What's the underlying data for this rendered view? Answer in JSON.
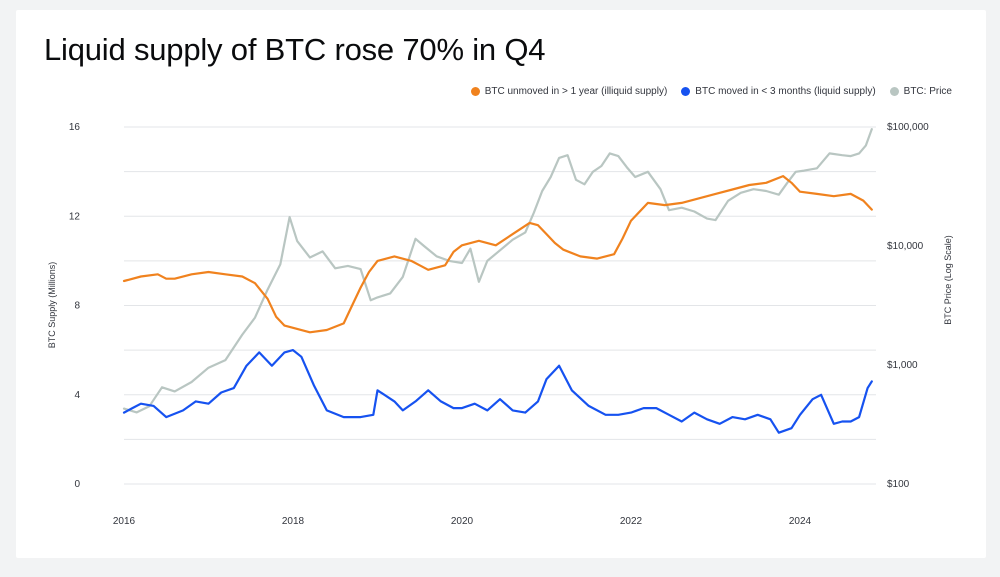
{
  "title": "Liquid supply of BTC rose 70% in Q4",
  "legend": [
    {
      "label": "BTC unmoved in > 1 year (illiquid supply)",
      "color": "#f0821e"
    },
    {
      "label": "BTC moved in < 3 months (liquid supply)",
      "color": "#1652f0"
    },
    {
      "label": "BTC: Price",
      "color": "#b9c6c2"
    }
  ],
  "chart_data": {
    "type": "line",
    "xlabel": "",
    "ylabel": "BTC Supply (Millions)",
    "y2label": "BTC Price (Log Scale)",
    "xlim": [
      2016.0,
      2024.9
    ],
    "ylim": [
      0,
      16
    ],
    "y2lim": [
      100,
      100000
    ],
    "y2scale": "log",
    "xticks": [
      2016,
      2018,
      2020,
      2022,
      2024
    ],
    "xticklabels": [
      "2016",
      "2018",
      "2020",
      "2022",
      "2024"
    ],
    "yticks": [
      0,
      4,
      8,
      12,
      16
    ],
    "yticklabels": [
      "0",
      "4",
      "8",
      "12",
      "16"
    ],
    "y2ticks": [
      100,
      1000,
      10000,
      100000
    ],
    "y2ticklabels": [
      "$100",
      "$1,000",
      "$10,000",
      "$100,000"
    ],
    "grid": true,
    "legend_position": "top-right",
    "series": [
      {
        "name": "BTC unmoved in > 1 year (illiquid supply)",
        "axis": "left",
        "color": "#f0821e",
        "x": [
          2016.0,
          2016.2,
          2016.4,
          2016.5,
          2016.6,
          2016.8,
          2017.0,
          2017.2,
          2017.4,
          2017.55,
          2017.7,
          2017.8,
          2017.9,
          2018.0,
          2018.2,
          2018.4,
          2018.6,
          2018.7,
          2018.8,
          2018.9,
          2019.0,
          2019.2,
          2019.4,
          2019.5,
          2019.6,
          2019.8,
          2019.9,
          2020.0,
          2020.2,
          2020.4,
          2020.6,
          2020.8,
          2020.9,
          2021.0,
          2021.1,
          2021.2,
          2021.4,
          2021.6,
          2021.8,
          2021.9,
          2022.0,
          2022.2,
          2022.4,
          2022.6,
          2022.8,
          2023.0,
          2023.2,
          2023.4,
          2023.6,
          2023.8,
          2023.9,
          2024.0,
          2024.2,
          2024.4,
          2024.6,
          2024.75,
          2024.85
        ],
        "values": [
          9.1,
          9.3,
          9.4,
          9.2,
          9.2,
          9.4,
          9.5,
          9.4,
          9.3,
          9.0,
          8.3,
          7.5,
          7.1,
          7.0,
          6.8,
          6.9,
          7.2,
          8.0,
          8.8,
          9.5,
          10.0,
          10.2,
          10.0,
          9.8,
          9.6,
          9.8,
          10.4,
          10.7,
          10.9,
          10.7,
          11.2,
          11.7,
          11.6,
          11.2,
          10.8,
          10.5,
          10.2,
          10.1,
          10.3,
          11.0,
          11.8,
          12.6,
          12.5,
          12.6,
          12.8,
          13.0,
          13.2,
          13.4,
          13.5,
          13.8,
          13.5,
          13.1,
          13.0,
          12.9,
          13.0,
          12.7,
          12.3
        ]
      },
      {
        "name": "BTC moved in < 3 months (liquid supply)",
        "axis": "left",
        "color": "#1652f0",
        "x": [
          2016.0,
          2016.1,
          2016.2,
          2016.35,
          2016.5,
          2016.7,
          2016.85,
          2017.0,
          2017.15,
          2017.3,
          2017.45,
          2017.6,
          2017.75,
          2017.9,
          2018.0,
          2018.1,
          2018.25,
          2018.4,
          2018.6,
          2018.8,
          2018.95,
          2019.0,
          2019.2,
          2019.3,
          2019.45,
          2019.6,
          2019.75,
          2019.9,
          2020.0,
          2020.15,
          2020.3,
          2020.45,
          2020.6,
          2020.75,
          2020.9,
          2021.0,
          2021.15,
          2021.3,
          2021.5,
          2021.7,
          2021.85,
          2022.0,
          2022.15,
          2022.3,
          2022.45,
          2022.6,
          2022.75,
          2022.9,
          2023.05,
          2023.2,
          2023.35,
          2023.5,
          2023.65,
          2023.75,
          2023.9,
          2024.0,
          2024.15,
          2024.25,
          2024.4,
          2024.5,
          2024.6,
          2024.7,
          2024.8,
          2024.85
        ],
        "values": [
          3.2,
          3.4,
          3.6,
          3.5,
          3.0,
          3.3,
          3.7,
          3.6,
          4.1,
          4.3,
          5.3,
          5.9,
          5.3,
          5.9,
          6.0,
          5.7,
          4.4,
          3.3,
          3.0,
          3.0,
          3.1,
          4.2,
          3.7,
          3.3,
          3.7,
          4.2,
          3.7,
          3.4,
          3.4,
          3.6,
          3.3,
          3.8,
          3.3,
          3.2,
          3.7,
          4.7,
          5.3,
          4.2,
          3.5,
          3.1,
          3.1,
          3.2,
          3.4,
          3.4,
          3.1,
          2.8,
          3.2,
          2.9,
          2.7,
          3.0,
          2.9,
          3.1,
          2.9,
          2.3,
          2.5,
          3.1,
          3.8,
          4.0,
          2.7,
          2.8,
          2.8,
          3.0,
          4.3,
          4.6
        ]
      },
      {
        "name": "BTC: Price",
        "axis": "right",
        "color": "#b9c6c2",
        "x": [
          2016.0,
          2016.15,
          2016.3,
          2016.45,
          2016.6,
          2016.8,
          2017.0,
          2017.2,
          2017.4,
          2017.55,
          2017.7,
          2017.85,
          2017.96,
          2018.05,
          2018.2,
          2018.35,
          2018.5,
          2018.65,
          2018.8,
          2018.92,
          2019.0,
          2019.15,
          2019.3,
          2019.45,
          2019.55,
          2019.7,
          2019.85,
          2020.0,
          2020.1,
          2020.2,
          2020.3,
          2020.45,
          2020.6,
          2020.75,
          2020.85,
          2020.95,
          2021.05,
          2021.15,
          2021.25,
          2021.35,
          2021.45,
          2021.55,
          2021.65,
          2021.75,
          2021.85,
          2021.95,
          2022.05,
          2022.2,
          2022.35,
          2022.45,
          2022.6,
          2022.75,
          2022.9,
          2023.0,
          2023.15,
          2023.3,
          2023.45,
          2023.6,
          2023.75,
          2023.85,
          2023.95,
          2024.05,
          2024.2,
          2024.35,
          2024.5,
          2024.6,
          2024.7,
          2024.78,
          2024.85
        ],
        "values": [
          430,
          400,
          450,
          650,
          600,
          720,
          950,
          1100,
          1800,
          2500,
          4300,
          7000,
          17500,
          11000,
          8000,
          9000,
          6500,
          6800,
          6400,
          3500,
          3700,
          4000,
          5500,
          11500,
          10000,
          8200,
          7500,
          7200,
          9500,
          5000,
          7500,
          9200,
          11300,
          13000,
          19000,
          29000,
          38000,
          55000,
          58000,
          36000,
          33000,
          42000,
          47000,
          60000,
          57000,
          46000,
          38000,
          42000,
          30000,
          20000,
          21000,
          19500,
          17000,
          16500,
          24000,
          28000,
          30000,
          29000,
          27000,
          34000,
          42000,
          43000,
          45000,
          60000,
          58000,
          57000,
          60000,
          70000,
          96000
        ]
      }
    ]
  }
}
